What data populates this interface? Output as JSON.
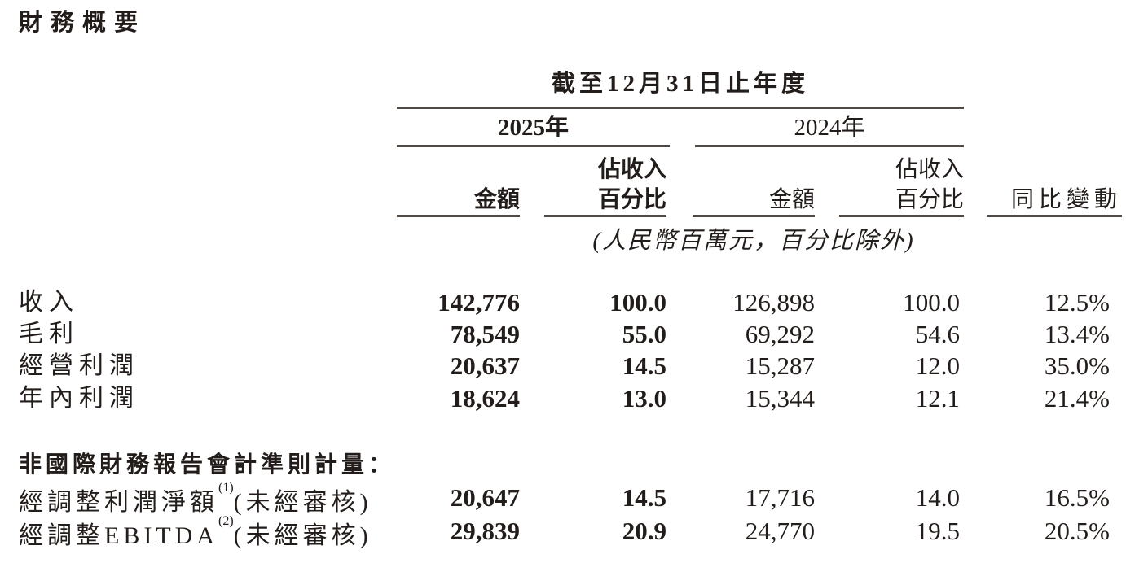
{
  "page_title": "財務概要",
  "financial_table": {
    "period_header": "截至12月31日止年度",
    "col_group_2025": "2025年",
    "col_group_2024": "2024年",
    "subheaders": {
      "amount_2025": "金額",
      "pct_2025_line1": "佔收入",
      "pct_2025_line2": "百分比",
      "amount_2024": "金額",
      "pct_2024_line1": "佔收入",
      "pct_2024_line2": "百分比",
      "yoy": "同比變動"
    },
    "unit_note": "(人民幣百萬元，百分比除外)",
    "rows": [
      {
        "label": "收入",
        "amount_2025": "142,776",
        "pct_2025": "100.0",
        "amount_2024": "126,898",
        "pct_2024": "100.0",
        "yoy": "12.5%"
      },
      {
        "label": "毛利",
        "amount_2025": "78,549",
        "pct_2025": "55.0",
        "amount_2024": "69,292",
        "pct_2024": "54.6",
        "yoy": "13.4%"
      },
      {
        "label": "經營利潤",
        "amount_2025": "20,637",
        "pct_2025": "14.5",
        "amount_2024": "15,287",
        "pct_2024": "12.0",
        "yoy": "35.0%"
      },
      {
        "label": "年內利潤",
        "amount_2025": "18,624",
        "pct_2025": "13.0",
        "amount_2024": "15,344",
        "pct_2024": "12.1",
        "yoy": "21.4%"
      }
    ],
    "non_ifrs_section_header": "非國際財務報告會計準則計量：",
    "non_ifrs_rows": [
      {
        "label": "經調整利潤淨額",
        "footnote": "(1)",
        "label_suffix": "(未經審核)",
        "amount_2025": "20,647",
        "pct_2025": "14.5",
        "amount_2024": "17,716",
        "pct_2024": "14.0",
        "yoy": "16.5%"
      },
      {
        "label": "經調整EBITDA",
        "footnote": "(2)",
        "label_suffix": "(未經審核)",
        "amount_2025": "29,839",
        "pct_2025": "20.9",
        "amount_2024": "24,770",
        "pct_2024": "19.5",
        "yoy": "20.5%"
      }
    ],
    "colors": {
      "text": "#221d1a",
      "rule": "#4f4a45",
      "background": "#ffffff"
    }
  }
}
